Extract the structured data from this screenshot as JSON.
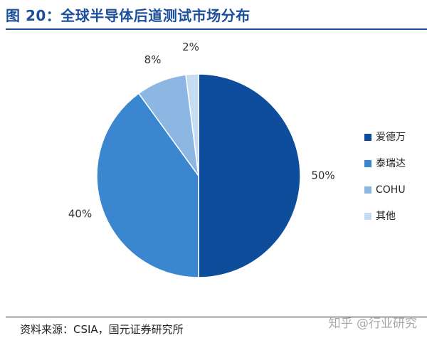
{
  "figure": {
    "title": "图 20：全球半导体后道测试市场分布",
    "source": "资料来源：CSIA，国元证券研究所",
    "watermark": "知乎 @行业研究"
  },
  "chart_data": {
    "type": "pie",
    "title": "图 20：全球半导体后道测试市场分布",
    "categories": [
      "爱德万",
      "泰瑞达",
      "COHU",
      "其他"
    ],
    "values": [
      50,
      40,
      8,
      2
    ],
    "value_labels": [
      "50%",
      "40%",
      "8%",
      "2%"
    ],
    "colors": [
      "#0e4d9c",
      "#3b87cf",
      "#8cb7e3",
      "#c5dcf1"
    ],
    "start": "12 o'clock",
    "direction": "clockwise",
    "legend_position": "right"
  }
}
